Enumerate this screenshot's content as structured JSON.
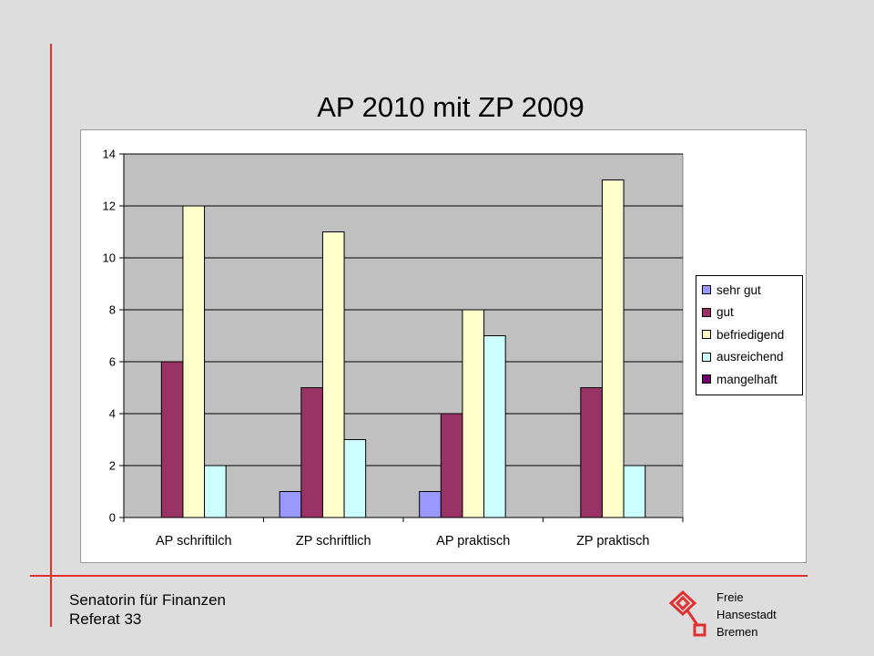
{
  "slide": {
    "title": "AP 2010 mit ZP 2009",
    "footer_left": [
      "Senatorin für Finanzen",
      "Referat 33"
    ],
    "footer_right": [
      "Freie",
      "Hansestadt",
      "Bremen"
    ],
    "accent_color": "#e03030",
    "logo_icon": "bremen-key-icon"
  },
  "chart_data": {
    "type": "bar",
    "title": "AP 2010 mit ZP 2009",
    "xlabel": "",
    "ylabel": "",
    "categories": [
      "AP schriftilch",
      "ZP schriftlich",
      "AP praktisch",
      "ZP praktisch"
    ],
    "series": [
      {
        "name": "sehr gut",
        "color": "#9999ff",
        "values": [
          0,
          1,
          1,
          0
        ]
      },
      {
        "name": "gut",
        "color": "#993366",
        "values": [
          6,
          5,
          4,
          5
        ]
      },
      {
        "name": "befriedigend",
        "color": "#ffffcc",
        "values": [
          12,
          11,
          8,
          13
        ]
      },
      {
        "name": "ausreichend",
        "color": "#ccffff",
        "values": [
          2,
          3,
          7,
          2
        ]
      },
      {
        "name": "mangelhaft",
        "color": "#660066",
        "values": [
          0,
          0,
          0,
          0
        ]
      }
    ],
    "ylim": [
      0,
      14
    ],
    "yticks": [
      0,
      2,
      4,
      6,
      8,
      10,
      12,
      14
    ],
    "grid": true,
    "plot_background": "#c0c0c0",
    "legend_position": "right"
  }
}
